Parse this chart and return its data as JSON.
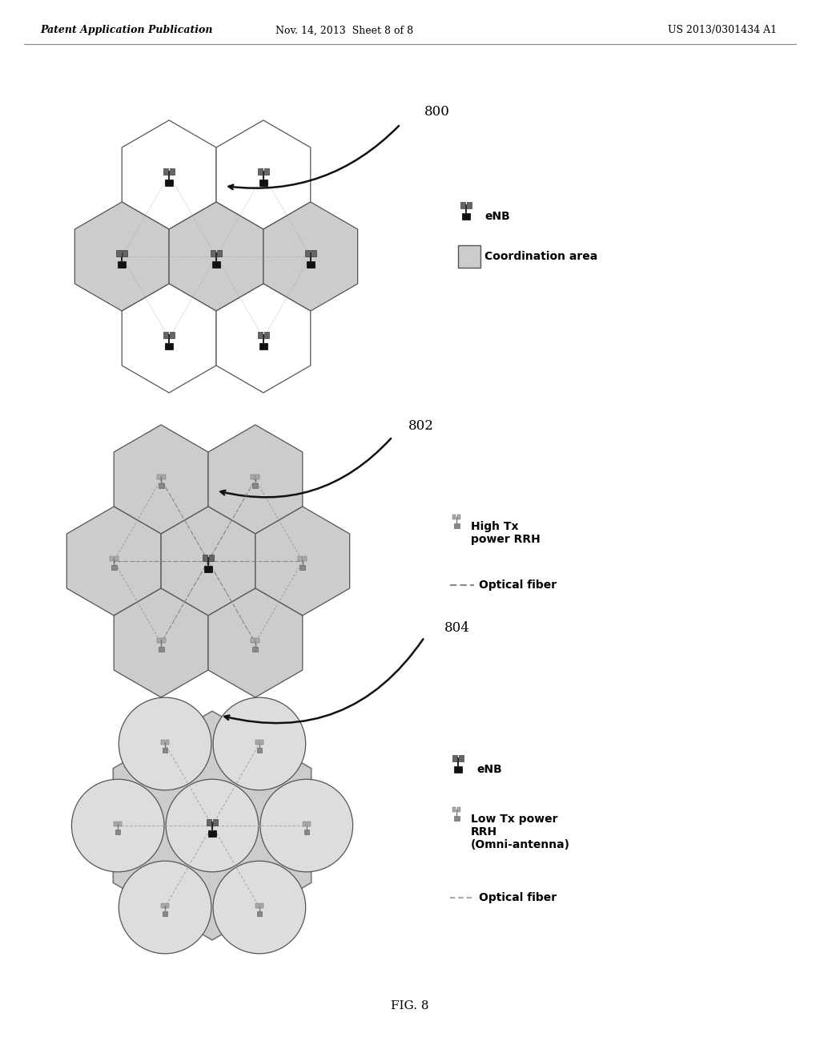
{
  "bg_color": "#ffffff",
  "header_left": "Patent Application Publication",
  "header_mid": "Nov. 14, 2013  Sheet 8 of 8",
  "header_right": "US 2013/0301434 A1",
  "figure_label": "FIG. 8",
  "label_800": "800",
  "label_802": "802",
  "label_804": "804",
  "diagram1_label_enb": "eNB",
  "diagram1_label_coord": "Coordination area",
  "diagram2_label_rrh": "High Tx\npower RRH",
  "diagram2_label_fiber": "Optical fiber",
  "diagram3_label_enb": "eNB",
  "diagram3_label_rrh": "Low Tx power\nRRH\n(Omni-antenna)",
  "diagram3_label_fiber": "Optical fiber",
  "hex_color_normal": "#ffffff",
  "hex_color_shaded": "#cccccc",
  "hex_edge_color": "#444444",
  "header_fontsize": 9,
  "label_fontsize": 10
}
